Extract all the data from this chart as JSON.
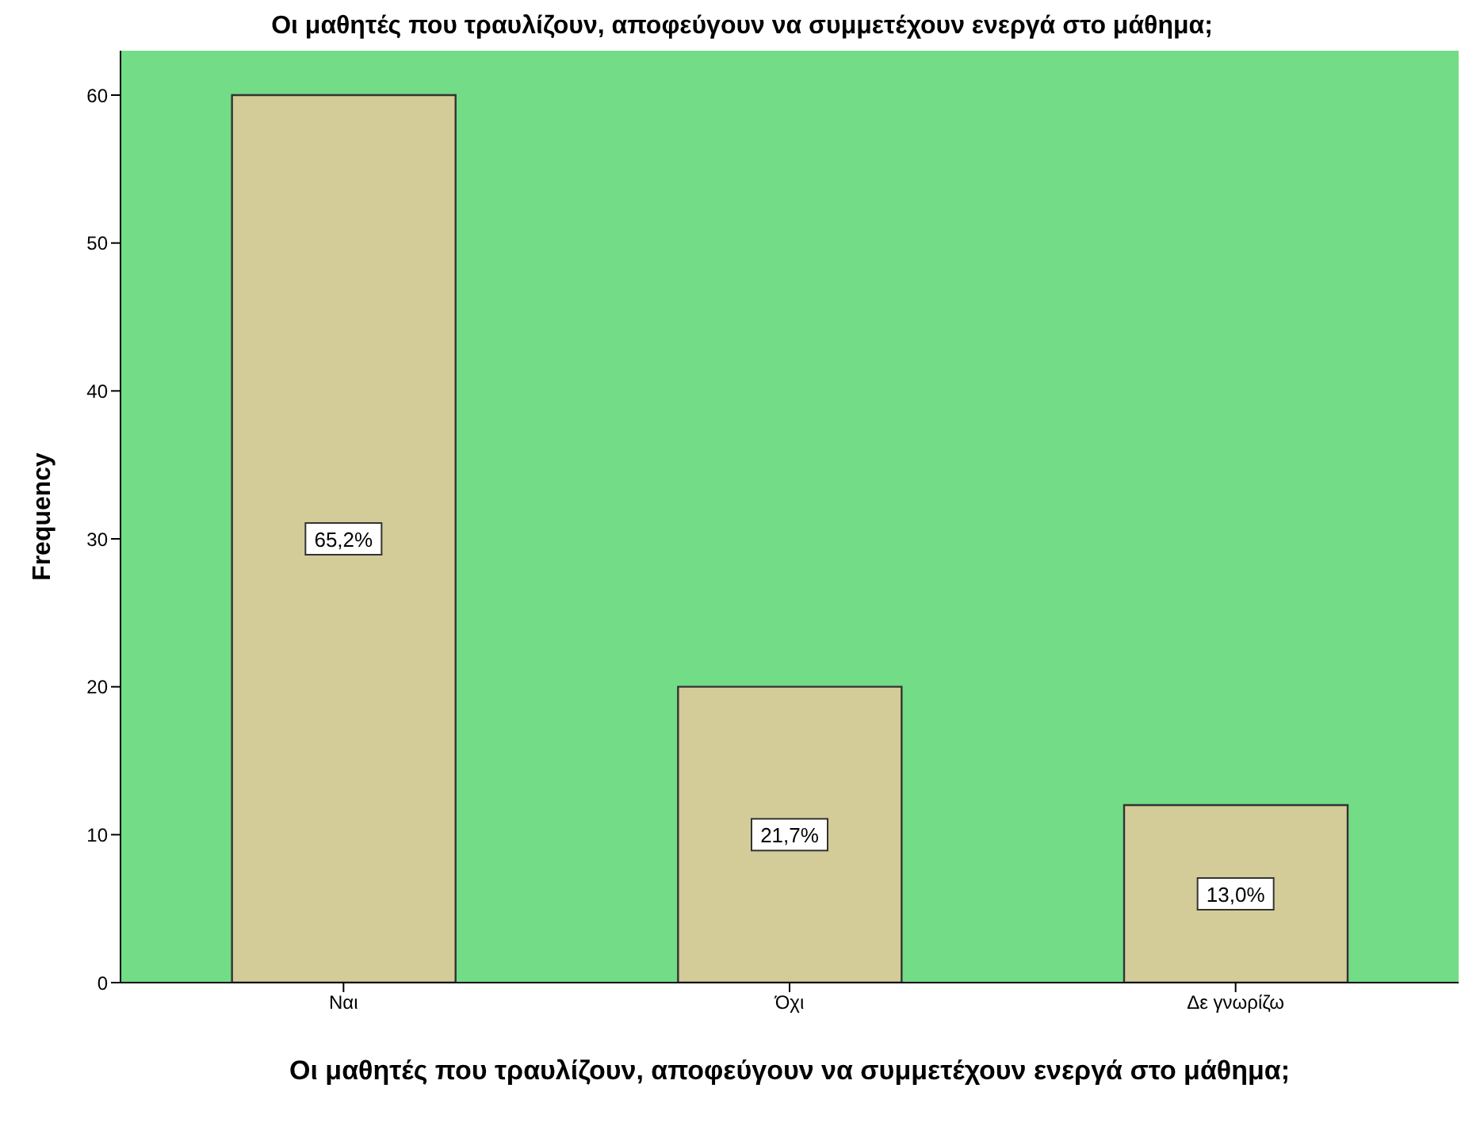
{
  "chart_data": {
    "type": "bar",
    "title": "Οι μαθητές που τραυλίζουν, αποφεύγουν να συμμετέχουν ενεργά στο μάθημα;",
    "xlabel": "Οι μαθητές που τραυλίζουν, αποφεύγουν να συμμετέχουν ενεργά στο μάθημα;",
    "ylabel": "Frequency",
    "categories": [
      "Ναι",
      "Όχι",
      "Δε γνωρίζω"
    ],
    "values": [
      60,
      20,
      12
    ],
    "annotations": [
      "65,2%",
      "21,7%",
      "13,0%"
    ],
    "color": "#d3cc98",
    "ylim": [
      0,
      63
    ],
    "yticks": [
      0,
      10,
      20,
      30,
      40,
      50,
      60
    ],
    "grid": false,
    "legend": false
  }
}
